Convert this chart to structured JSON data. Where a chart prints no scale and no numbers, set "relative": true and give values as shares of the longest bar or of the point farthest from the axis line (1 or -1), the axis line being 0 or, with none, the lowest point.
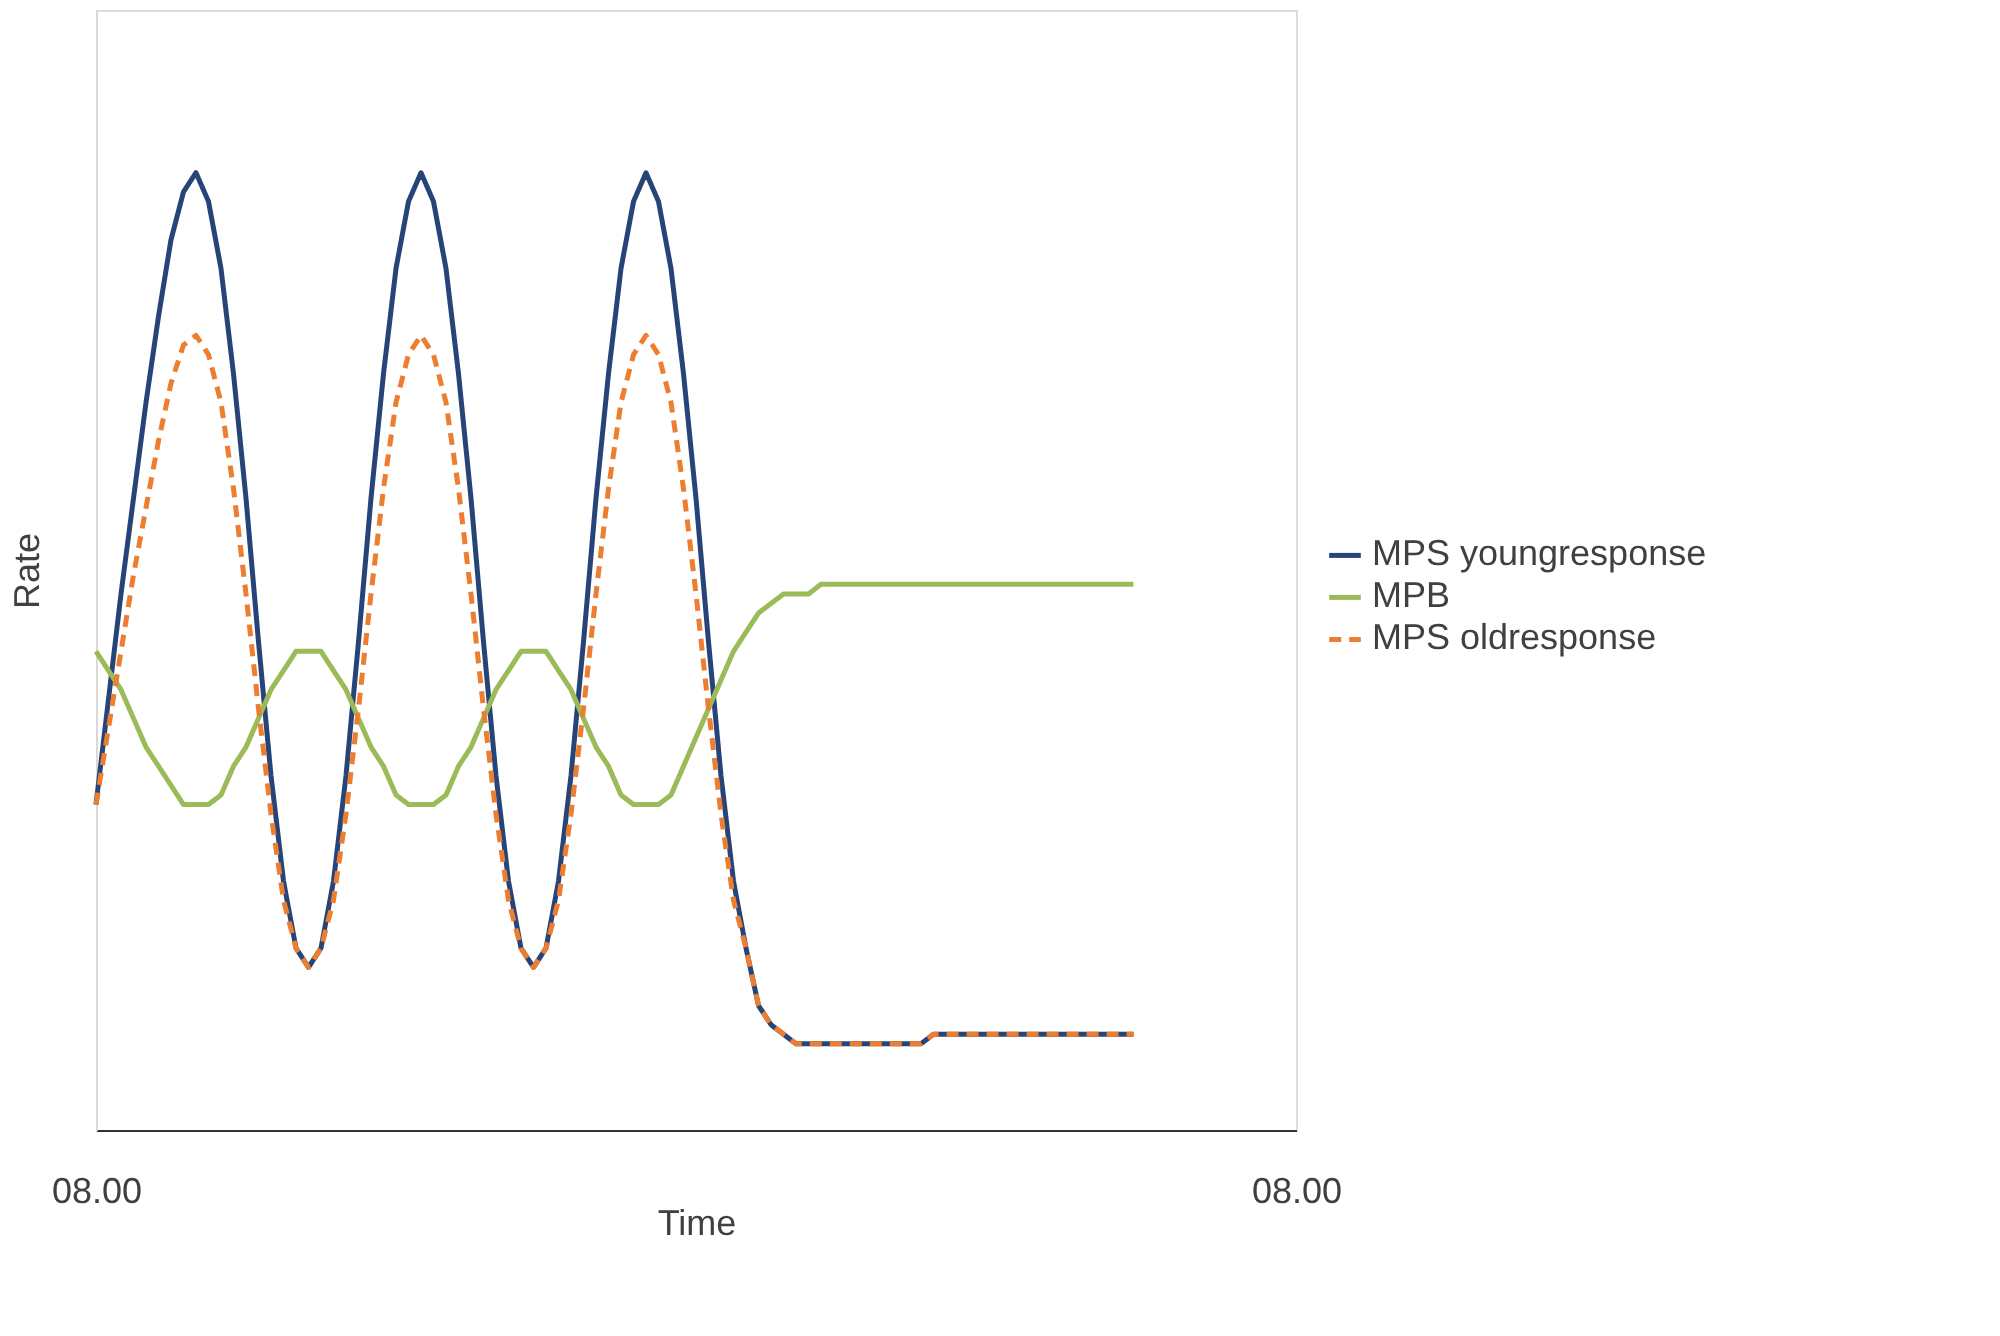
{
  "chart_data": {
    "type": "line",
    "relative": true,
    "xlabel": "Time",
    "ylabel": "Rate",
    "categories": [
      "08.00",
      null,
      null,
      null,
      null,
      null,
      null,
      null,
      null,
      null,
      null,
      null,
      null,
      null,
      null,
      null,
      null,
      null,
      null,
      null,
      null,
      null,
      null,
      null,
      null,
      null,
      null,
      null,
      null,
      null,
      null,
      null,
      null,
      null,
      null,
      null,
      null,
      null,
      null,
      null,
      null,
      null,
      null,
      null,
      null,
      null,
      null,
      null,
      null,
      null,
      null,
      null,
      null,
      null,
      null,
      null,
      null,
      null,
      null,
      null,
      null,
      null,
      null,
      null,
      null,
      null,
      null,
      null,
      null,
      null,
      null,
      null,
      null,
      null,
      null,
      null,
      null,
      null,
      null,
      null,
      null,
      null,
      null,
      null,
      null,
      null,
      null,
      null,
      null,
      null,
      null,
      null,
      null,
      null,
      null,
      null,
      "08.00"
    ],
    "grid": false,
    "legend": "right",
    "marker": "none",
    "series": [
      {
        "name": "MPS youngresponse",
        "color": "#264478",
        "line_style": "solid",
        "values": [
          0.34,
          0.45,
          0.56,
          0.66,
          0.76,
          0.85,
          0.93,
          0.98,
          1.0,
          0.97,
          0.9,
          0.79,
          0.66,
          0.51,
          0.37,
          0.26,
          0.19,
          0.17,
          0.19,
          0.26,
          0.37,
          0.51,
          0.66,
          0.79,
          0.9,
          0.97,
          1.0,
          0.97,
          0.9,
          0.79,
          0.66,
          0.51,
          0.37,
          0.26,
          0.19,
          0.17,
          0.19,
          0.26,
          0.37,
          0.51,
          0.66,
          0.79,
          0.9,
          0.97,
          1.0,
          0.97,
          0.9,
          0.79,
          0.66,
          0.51,
          0.37,
          0.26,
          0.19,
          0.13,
          0.11,
          0.1,
          0.09,
          0.09,
          0.09,
          0.09,
          0.09,
          0.09,
          0.09,
          0.09,
          0.09,
          0.09,
          0.09,
          0.1,
          0.1,
          0.1,
          0.1,
          0.1,
          0.1,
          0.1,
          0.1,
          0.1,
          0.1,
          0.1,
          0.1,
          0.1,
          0.1,
          0.1,
          0.1,
          0.1,
          null,
          null,
          null,
          null,
          null,
          null,
          null,
          null,
          null,
          null,
          null,
          null,
          null
        ]
      },
      {
        "name": "MPB",
        "color": "#9bbb59",
        "line_style": "solid",
        "values": [
          0.5,
          0.48,
          0.46,
          0.43,
          0.4,
          0.38,
          0.36,
          0.34,
          0.34,
          0.34,
          0.35,
          0.38,
          0.4,
          0.43,
          0.46,
          0.48,
          0.5,
          0.5,
          0.5,
          0.48,
          0.46,
          0.43,
          0.4,
          0.38,
          0.35,
          0.34,
          0.34,
          0.34,
          0.35,
          0.38,
          0.4,
          0.43,
          0.46,
          0.48,
          0.5,
          0.5,
          0.5,
          0.48,
          0.46,
          0.43,
          0.4,
          0.38,
          0.35,
          0.34,
          0.34,
          0.34,
          0.35,
          0.38,
          0.41,
          0.44,
          0.47,
          0.5,
          0.52,
          0.54,
          0.55,
          0.56,
          0.56,
          0.56,
          0.57,
          0.57,
          0.57,
          0.57,
          0.57,
          0.57,
          0.57,
          0.57,
          0.57,
          0.57,
          0.57,
          0.57,
          0.57,
          0.57,
          0.57,
          0.57,
          0.57,
          0.57,
          0.57,
          0.57,
          0.57,
          0.57,
          0.57,
          0.57,
          0.57,
          0.57,
          null,
          null,
          null,
          null,
          null,
          null,
          null,
          null,
          null,
          null,
          null,
          null,
          null
        ]
      },
      {
        "name": "MPS oldresponse",
        "color": "#ed7d31",
        "line_style": "dashed",
        "values": [
          0.34,
          0.42,
          0.5,
          0.58,
          0.65,
          0.72,
          0.78,
          0.82,
          0.83,
          0.81,
          0.76,
          0.67,
          0.56,
          0.44,
          0.33,
          0.24,
          0.19,
          0.17,
          0.19,
          0.24,
          0.33,
          0.44,
          0.56,
          0.67,
          0.76,
          0.81,
          0.83,
          0.81,
          0.76,
          0.67,
          0.56,
          0.44,
          0.33,
          0.24,
          0.19,
          0.17,
          0.19,
          0.24,
          0.33,
          0.44,
          0.56,
          0.67,
          0.76,
          0.81,
          0.83,
          0.81,
          0.76,
          0.67,
          0.56,
          0.44,
          0.33,
          0.24,
          0.19,
          0.13,
          0.11,
          0.1,
          0.09,
          0.09,
          0.09,
          0.09,
          0.09,
          0.09,
          0.09,
          0.09,
          0.09,
          0.09,
          0.09,
          0.1,
          0.1,
          0.1,
          0.1,
          0.1,
          0.1,
          0.1,
          0.1,
          0.1,
          0.1,
          0.1,
          0.1,
          0.1,
          0.1,
          0.1,
          0.1,
          0.1,
          null,
          null,
          null,
          null,
          null,
          null,
          null,
          null,
          null,
          null,
          null,
          null,
          null
        ]
      }
    ]
  }
}
